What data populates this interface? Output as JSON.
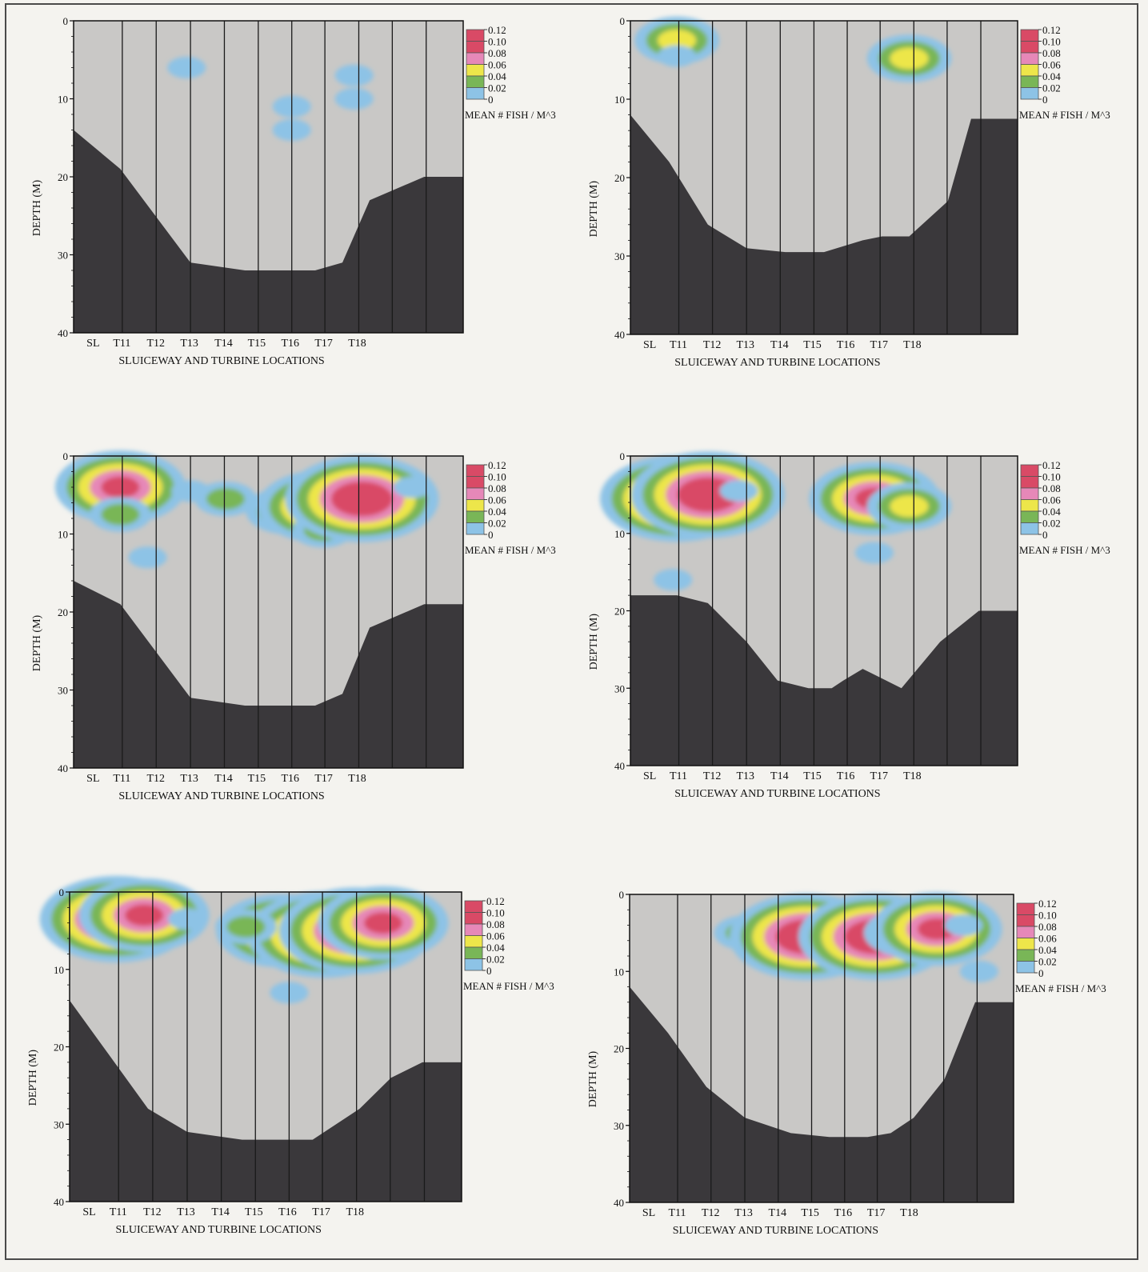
{
  "colors": {
    "page_bg": "#f4f3ef",
    "water": "#c9c8c6",
    "bottom": "#3a383b",
    "gridline": "#1a1a1a",
    "level_0_02": "#8dc3e6",
    "level_0_04": "#79b657",
    "level_0_06": "#ede64a",
    "level_0_08": "#e688b8",
    "level_0_10": "#d94a66",
    "level_0_12": "#d94a66"
  },
  "chart_data": [
    {
      "type": "heatmap",
      "panel": "top-left",
      "xlabel": "SLUICEWAY AND TURBINE LOCATIONS",
      "ylabel": "DEPTH (M)",
      "x_categories": [
        "SL",
        "T11",
        "T12",
        "T13",
        "T14",
        "T15",
        "T16",
        "T17",
        "T18"
      ],
      "yticks": [
        "0",
        "10",
        "20",
        "30",
        "40"
      ],
      "ylim": [
        0,
        40
      ],
      "legend": {
        "title": "MEAN # FISH / M^3",
        "levels": [
          "0.12",
          "0.10",
          "0.08",
          "0.06",
          "0.04",
          "0.02",
          "0"
        ],
        "placement": "right"
      },
      "bottom_profile": {
        "x": [
          0,
          0.12,
          0.3,
          0.44,
          0.52,
          0.62,
          0.69,
          0.76,
          0.9,
          1.0
        ],
        "depth": [
          14,
          19,
          31,
          32,
          32,
          32,
          31,
          23,
          20,
          20
        ]
      },
      "hotspots": [
        {
          "x": 0.29,
          "depth": 6,
          "level": 0.02
        },
        {
          "x": 0.56,
          "depth": 11,
          "level": 0.02
        },
        {
          "x": 0.56,
          "depth": 14,
          "level": 0.02
        },
        {
          "x": 0.72,
          "depth": 7,
          "level": 0.02
        },
        {
          "x": 0.72,
          "depth": 10,
          "level": 0.02
        }
      ]
    },
    {
      "type": "heatmap",
      "panel": "top-right",
      "xlabel": "SLUICEWAY AND TURBINE LOCATIONS",
      "ylabel": "DEPTH (M)",
      "x_categories": [
        "SL",
        "T11",
        "T12",
        "T13",
        "T14",
        "T15",
        "T16",
        "T17",
        "T18"
      ],
      "yticks": [
        "0",
        "10",
        "20",
        "30",
        "40"
      ],
      "ylim": [
        0,
        40
      ],
      "legend": {
        "title": "MEAN # FISH / M^3",
        "levels": [
          "0.12",
          "0.10",
          "0.08",
          "0.06",
          "0.04",
          "0.02",
          "0"
        ],
        "placement": "right"
      },
      "bottom_profile": {
        "x": [
          0,
          0.1,
          0.2,
          0.3,
          0.4,
          0.5,
          0.6,
          0.65,
          0.72,
          0.82,
          0.88,
          1.0
        ],
        "depth": [
          12,
          18,
          26,
          29,
          29.5,
          29.5,
          28,
          27.5,
          27.5,
          23,
          12.5,
          12.5
        ]
      },
      "hotspots": [
        {
          "x": 0.12,
          "depth": 2.5,
          "level": 0.06
        },
        {
          "x": 0.12,
          "depth": 4.5,
          "level": 0.02
        },
        {
          "x": 0.72,
          "depth": 4.8,
          "level": 0.06
        }
      ]
    },
    {
      "type": "heatmap",
      "panel": "middle-left",
      "xlabel": "SLUICEWAY AND TURBINE LOCATIONS",
      "ylabel": "DEPTH (M)",
      "x_categories": [
        "SL",
        "T11",
        "T12",
        "T13",
        "T14",
        "T15",
        "T16",
        "T17",
        "T18"
      ],
      "yticks": [
        "0",
        "10",
        "20",
        "30",
        "40"
      ],
      "ylim": [
        0,
        40
      ],
      "legend": {
        "title": "MEAN # FISH / M^3",
        "levels": [
          "0.12",
          "0.10",
          "0.08",
          "0.06",
          "0.04",
          "0.02",
          "0"
        ],
        "placement": "right"
      },
      "bottom_profile": {
        "x": [
          0,
          0.12,
          0.3,
          0.44,
          0.52,
          0.62,
          0.69,
          0.76,
          0.9,
          1.0
        ],
        "depth": [
          16,
          19,
          31,
          32,
          32,
          32,
          30.5,
          22,
          19,
          19
        ]
      },
      "hotspots": [
        {
          "x": 0.12,
          "depth": 4,
          "level": 0.1
        },
        {
          "x": 0.12,
          "depth": 7.5,
          "level": 0.04
        },
        {
          "x": 0.3,
          "depth": 4.5,
          "level": 0.02
        },
        {
          "x": 0.39,
          "depth": 5.5,
          "level": 0.04
        },
        {
          "x": 0.55,
          "depth": 7,
          "level": 0.06
        },
        {
          "x": 0.64,
          "depth": 6.5,
          "level": 0.1
        },
        {
          "x": 0.64,
          "depth": 9.5,
          "level": 0.04
        },
        {
          "x": 0.74,
          "depth": 5.5,
          "level": 0.12
        },
        {
          "x": 0.87,
          "depth": 4,
          "level": 0.02
        },
        {
          "x": 0.19,
          "depth": 13,
          "level": 0.02
        }
      ]
    },
    {
      "type": "heatmap",
      "panel": "middle-right",
      "xlabel": "SLUICEWAY AND TURBINE LOCATIONS",
      "ylabel": "DEPTH (M)",
      "x_categories": [
        "SL",
        "T11",
        "T12",
        "T13",
        "T14",
        "T15",
        "T16",
        "T17",
        "T18"
      ],
      "yticks": [
        "0",
        "10",
        "20",
        "30",
        "40"
      ],
      "ylim": [
        0,
        40
      ],
      "legend": {
        "title": "MEAN # FISH / M^3",
        "levels": [
          "0.12",
          "0.10",
          "0.08",
          "0.06",
          "0.04",
          "0.02",
          "0"
        ],
        "placement": "right"
      },
      "bottom_profile": {
        "x": [
          0,
          0.12,
          0.2,
          0.3,
          0.38,
          0.46,
          0.52,
          0.55,
          0.6,
          0.62,
          0.7,
          0.8,
          0.9,
          1.0
        ],
        "depth": [
          18,
          18,
          19,
          24,
          29,
          30,
          30,
          29,
          27.5,
          28,
          30,
          24,
          20,
          20
        ]
      },
      "hotspots": [
        {
          "x": 0.12,
          "depth": 5.5,
          "level": 0.12
        },
        {
          "x": 0.2,
          "depth": 5,
          "level": 0.12
        },
        {
          "x": 0.28,
          "depth": 4.5,
          "level": 0.02
        },
        {
          "x": 0.63,
          "depth": 5.5,
          "level": 0.1
        },
        {
          "x": 0.72,
          "depth": 6.5,
          "level": 0.06
        },
        {
          "x": 0.63,
          "depth": 12.5,
          "level": 0.02
        },
        {
          "x": 0.11,
          "depth": 16,
          "level": 0.02
        }
      ]
    },
    {
      "type": "heatmap",
      "panel": "bottom-left",
      "xlabel": "SLUICEWAY AND TURBINE LOCATIONS",
      "ylabel": "DEPTH (M)",
      "x_categories": [
        "SL",
        "T11",
        "T12",
        "T13",
        "T14",
        "T15",
        "T16",
        "T17",
        "T18"
      ],
      "yticks": [
        "0",
        "10",
        "20",
        "30",
        "40"
      ],
      "ylim": [
        0,
        40
      ],
      "legend": {
        "title": "MEAN # FISH / M^3",
        "levels": [
          "0.12",
          "0.10",
          "0.08",
          "0.06",
          "0.04",
          "0.02",
          "0"
        ],
        "placement": "right"
      },
      "bottom_profile": {
        "x": [
          0,
          0.1,
          0.2,
          0.3,
          0.44,
          0.52,
          0.62,
          0.68,
          0.74,
          0.82,
          0.9,
          1.0
        ],
        "depth": [
          14,
          21,
          28,
          31,
          32,
          32,
          32,
          30,
          28,
          24,
          22,
          22
        ]
      },
      "hotspots": [
        {
          "x": 0.12,
          "depth": 3.5,
          "level": 0.12
        },
        {
          "x": 0.19,
          "depth": 3,
          "level": 0.1
        },
        {
          "x": 0.3,
          "depth": 3.5,
          "level": 0.02
        },
        {
          "x": 0.54,
          "depth": 5,
          "level": 0.1
        },
        {
          "x": 0.65,
          "depth": 5.5,
          "level": 0.12
        },
        {
          "x": 0.73,
          "depth": 5,
          "level": 0.12
        },
        {
          "x": 0.8,
          "depth": 4,
          "level": 0.1
        },
        {
          "x": 0.45,
          "depth": 4.5,
          "level": 0.04
        },
        {
          "x": 0.56,
          "depth": 13,
          "level": 0.02
        }
      ]
    },
    {
      "type": "heatmap",
      "panel": "bottom-right",
      "xlabel": "SLUICEWAY AND TURBINE LOCATIONS",
      "ylabel": "DEPTH (M)",
      "x_categories": [
        "SL",
        "T11",
        "T12",
        "T13",
        "T14",
        "T15",
        "T16",
        "T17",
        "T18"
      ],
      "yticks": [
        "0",
        "10",
        "20",
        "30",
        "40"
      ],
      "ylim": [
        0,
        40
      ],
      "legend": {
        "title": "MEAN # FISH / M^3",
        "levels": [
          "0.12",
          "0.10",
          "0.08",
          "0.06",
          "0.04",
          "0.02",
          "0"
        ],
        "placement": "right"
      },
      "bottom_profile": {
        "x": [
          0,
          0.1,
          0.2,
          0.3,
          0.42,
          0.52,
          0.62,
          0.68,
          0.74,
          0.82,
          0.9,
          1.0
        ],
        "depth": [
          12,
          18,
          25,
          29,
          31,
          31.5,
          31.5,
          31,
          29,
          24,
          14,
          14
        ]
      },
      "hotspots": [
        {
          "x": 0.3,
          "depth": 5,
          "level": 0.04
        },
        {
          "x": 0.46,
          "depth": 5,
          "level": 0.06
        },
        {
          "x": 0.46,
          "depth": 5.5,
          "level": 0.12
        },
        {
          "x": 0.56,
          "depth": 6.5,
          "level": 0.06
        },
        {
          "x": 0.64,
          "depth": 5.5,
          "level": 0.12
        },
        {
          "x": 0.72,
          "depth": 5,
          "level": 0.06
        },
        {
          "x": 0.8,
          "depth": 4.5,
          "level": 0.1
        },
        {
          "x": 0.87,
          "depth": 4,
          "level": 0.02
        },
        {
          "x": 0.91,
          "depth": 10,
          "level": 0.02
        }
      ]
    }
  ]
}
